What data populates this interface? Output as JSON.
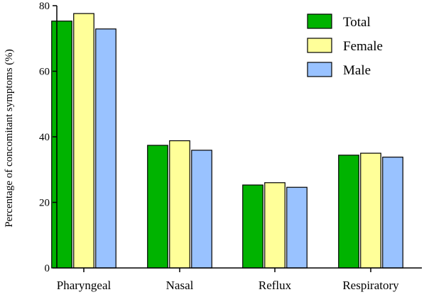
{
  "chart_data": {
    "type": "bar",
    "ylabel": "Percentage of concomitant symptoms (%)",
    "xlabel": "",
    "ylim": [
      0,
      80
    ],
    "yticks": [
      0,
      20,
      40,
      60,
      80
    ],
    "grid": false,
    "legend_position": "top-right",
    "categories": [
      "Pharyngeal",
      "Nasal",
      "Reflux",
      "Respiratory"
    ],
    "series": [
      {
        "name": "Total",
        "color": "#00b300",
        "values": [
          75.3,
          37.4,
          25.3,
          34.4
        ]
      },
      {
        "name": "Female",
        "color": "#ffff99",
        "values": [
          77.6,
          38.8,
          26.0,
          35.0
        ]
      },
      {
        "name": "Male",
        "color": "#99c2ff",
        "values": [
          72.9,
          35.9,
          24.6,
          33.8
        ]
      }
    ]
  }
}
